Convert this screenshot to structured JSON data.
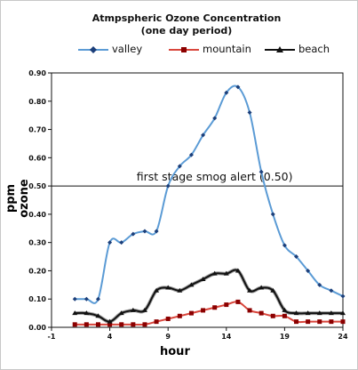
{
  "chart_data": {
    "type": "line",
    "title": "Atmpspheric Ozone Concentration",
    "subtitle": "(one day period)",
    "xlabel": "hour",
    "ylabel": "ppm ozone",
    "xlim": [
      -1,
      24
    ],
    "ylim": [
      0,
      0.9
    ],
    "xticks": [
      -1,
      4,
      9,
      14,
      19,
      24
    ],
    "yticks": [
      0.0,
      0.1,
      0.2,
      0.3,
      0.4,
      0.5,
      0.6,
      0.7,
      0.8,
      0.9
    ],
    "ytick_labels": [
      "0.00",
      "0.10",
      "0.20",
      "0.30",
      "0.40",
      "0.50",
      "0.60",
      "0.70",
      "0.80",
      "0.90"
    ],
    "grid": false,
    "legend_position": "top",
    "threshold": {
      "value": 0.5,
      "label": "first stage smog alert (0.50)"
    },
    "series": [
      {
        "name": "valley",
        "color": "#5b9bd5",
        "marker": "diamond",
        "x": [
          1,
          2,
          3,
          4,
          5,
          6,
          7,
          8,
          9,
          10,
          11,
          12,
          13,
          14,
          15,
          16,
          17,
          18,
          19,
          20,
          21,
          22,
          23,
          24
        ],
        "y": [
          0.1,
          0.1,
          0.1,
          0.3,
          0.3,
          0.33,
          0.34,
          0.34,
          0.5,
          0.57,
          0.61,
          0.68,
          0.74,
          0.83,
          0.85,
          0.76,
          0.55,
          0.4,
          0.29,
          0.25,
          0.2,
          0.15,
          0.13,
          0.11
        ]
      },
      {
        "name": "mountain",
        "color": "#d9463c",
        "marker": "square",
        "x": [
          1,
          2,
          3,
          4,
          5,
          6,
          7,
          8,
          9,
          10,
          11,
          12,
          13,
          14,
          15,
          16,
          17,
          18,
          19,
          20,
          21,
          22,
          23,
          24
        ],
        "y": [
          0.01,
          0.01,
          0.01,
          0.01,
          0.01,
          0.01,
          0.01,
          0.02,
          0.03,
          0.04,
          0.05,
          0.06,
          0.07,
          0.08,
          0.09,
          0.06,
          0.05,
          0.04,
          0.04,
          0.02,
          0.02,
          0.02,
          0.02,
          0.02
        ]
      },
      {
        "name": "beach",
        "color": "#111111",
        "marker": "triangle",
        "x": [
          1,
          2,
          3,
          4,
          5,
          6,
          7,
          8,
          9,
          10,
          11,
          12,
          13,
          14,
          15,
          16,
          17,
          18,
          19,
          20,
          21,
          22,
          23,
          24
        ],
        "y": [
          0.05,
          0.05,
          0.04,
          0.02,
          0.05,
          0.06,
          0.06,
          0.13,
          0.14,
          0.13,
          0.15,
          0.17,
          0.19,
          0.19,
          0.2,
          0.13,
          0.14,
          0.13,
          0.06,
          0.05,
          0.05,
          0.05,
          0.05,
          0.05
        ]
      }
    ]
  }
}
